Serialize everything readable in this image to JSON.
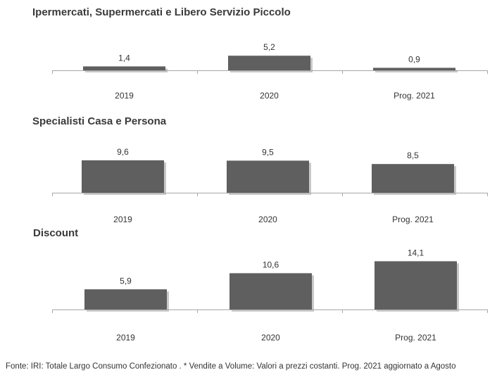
{
  "colors": {
    "bar": "#5f5f5f",
    "shadow": "#c8c8c8",
    "axis": "#a6a6a6",
    "text": "#333333"
  },
  "chart_data": [
    {
      "type": "bar",
      "title": "Ipermercati,  Supermercati e Libero Servizio Piccolo",
      "categories": [
        "2019",
        "2020",
        "Prog. 2021"
      ],
      "values": [
        1.4,
        5.2,
        0.9
      ],
      "labels": [
        "1,4",
        "5,2",
        "0,9"
      ],
      "ylim": [
        0,
        6
      ]
    },
    {
      "type": "bar",
      "title": "Specialisti  Casa e Persona",
      "categories": [
        "2019",
        "2020",
        "Prog. 2021"
      ],
      "values": [
        9.6,
        9.5,
        8.5
      ],
      "labels": [
        "9,6",
        "9,5",
        "8,5"
      ],
      "ylim": [
        0,
        10
      ]
    },
    {
      "type": "bar",
      "title": "Discount",
      "categories": [
        "2019",
        "2020",
        "Prog. 2021"
      ],
      "values": [
        5.9,
        10.6,
        14.1
      ],
      "labels": [
        "5,9",
        "10,6",
        "14,1"
      ],
      "ylim": [
        0,
        14.8
      ]
    }
  ],
  "footer": "Fonte: IRI: Totale Largo Consumo Confezionato . * Vendite a Volume: Valori a prezzi costanti. Prog. 2021 aggiornato a Agosto"
}
